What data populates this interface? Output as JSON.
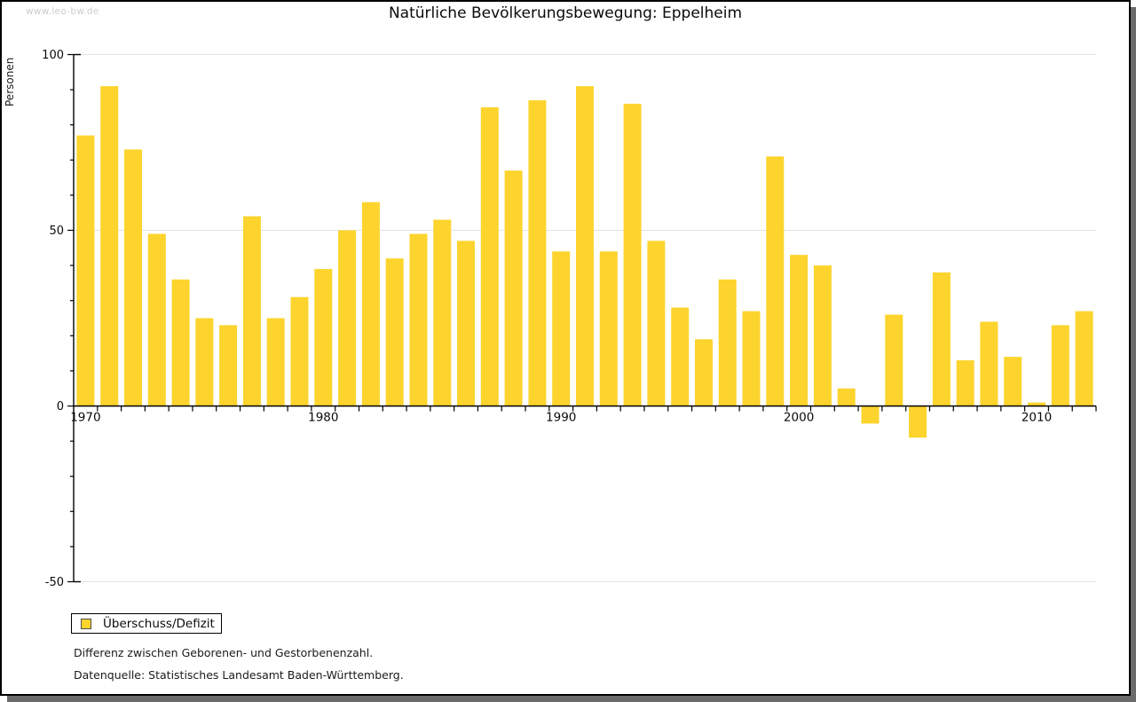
{
  "watermark": "www.leo-bw.de",
  "title": "Natürliche Bevölkerungsbewegung: Eppelheim",
  "legend": {
    "label": "Überschuss/Defizit"
  },
  "footer": {
    "line1": "Differenz zwischen Geborenen- und Gestorbenenzahl.",
    "line2": "Datenquelle: Statistisches Landesamt Baden-Württemberg."
  },
  "colors": {
    "bar": "#FCD42D",
    "swatch_border": "#4D4D4D",
    "grid": "#E3E3E3",
    "axis": "#000000",
    "tick_text": "#0A0A0A",
    "watermark": "#CCCCCC",
    "shadow": "#6B6B6B"
  },
  "chart_data": {
    "type": "bar",
    "title": "Natürliche Bevölkerungsbewegung: Eppelheim",
    "ylabel": "Personen",
    "x": [
      1970,
      1971,
      1972,
      1973,
      1974,
      1975,
      1976,
      1977,
      1978,
      1979,
      1980,
      1981,
      1982,
      1983,
      1984,
      1985,
      1986,
      1987,
      1988,
      1989,
      1990,
      1991,
      1992,
      1993,
      1994,
      1995,
      1996,
      1997,
      1998,
      1999,
      2000,
      2001,
      2002,
      2003,
      2004,
      2005,
      2006,
      2007,
      2008,
      2009,
      2010,
      2011,
      2012
    ],
    "series": [
      {
        "name": "Überschuss/Defizit",
        "values": [
          77,
          91,
          73,
          49,
          36,
          25,
          23,
          54,
          25,
          31,
          39,
          50,
          58,
          42,
          49,
          53,
          47,
          85,
          67,
          87,
          44,
          91,
          44,
          86,
          47,
          28,
          19,
          36,
          27,
          71,
          43,
          40,
          5,
          -5,
          26,
          -9,
          38,
          13,
          24,
          14,
          1,
          23,
          27
        ]
      }
    ],
    "ylim": [
      -50,
      100
    ],
    "ytick_major_step": 50,
    "ytick_minor_step": 10,
    "ytick_labels": [
      "100",
      "50",
      "0",
      "-50"
    ],
    "xtick_labels": [
      "1970",
      "1980",
      "1990",
      "2000",
      "2010"
    ],
    "grid": "horizontal-major",
    "legend_position": "bottom-left"
  }
}
